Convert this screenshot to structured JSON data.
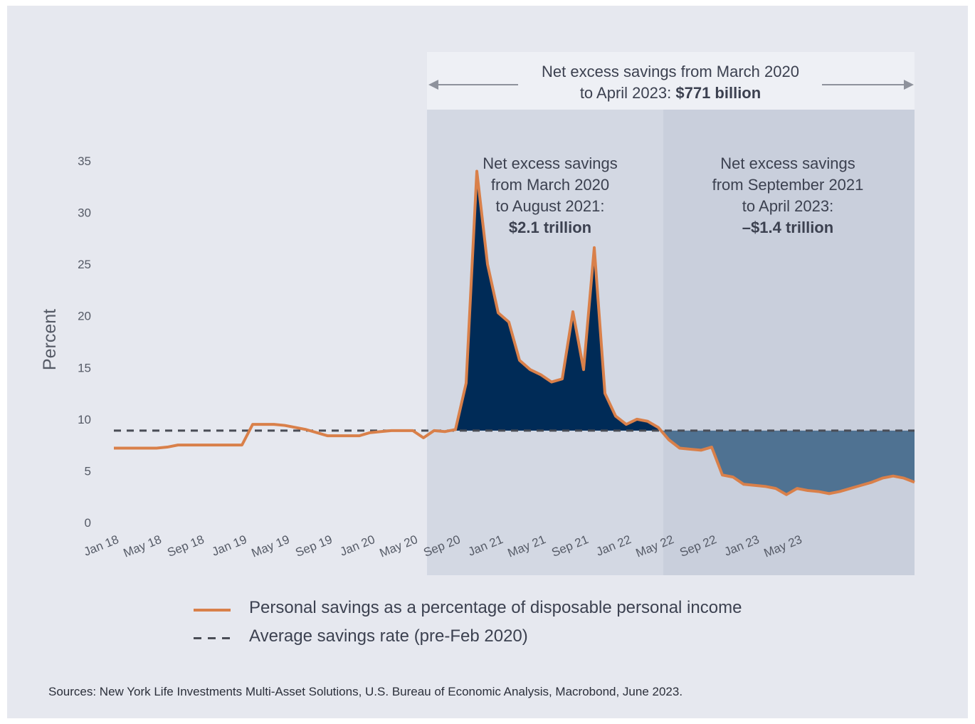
{
  "chart_data": {
    "type": "area",
    "ylabel": "Percent",
    "yticks": [
      "0",
      "5",
      "10",
      "15",
      "20",
      "25",
      "30",
      "35"
    ],
    "ylim": [
      0,
      35
    ],
    "xticks": [
      "Jan 18",
      "May 18",
      "Sep 18",
      "Jan 19",
      "May 19",
      "Sep 19",
      "Jan 20",
      "May 20",
      "Sep 20",
      "Jan 21",
      "May 21",
      "Sep 21",
      "Jan 22",
      "May 22",
      "Sep 22",
      "Jan 23",
      "May 23"
    ],
    "average_rate": 8.9,
    "series": [
      {
        "name": "Personal savings as a percentage of disposable personal income",
        "color": "#d9804a",
        "values": [
          7.2,
          7.2,
          7.2,
          7.2,
          7.2,
          7.3,
          7.5,
          7.5,
          7.5,
          7.5,
          7.5,
          7.5,
          7.5,
          9.5,
          9.5,
          9.5,
          9.4,
          9.2,
          9.0,
          8.7,
          8.4,
          8.4,
          8.4,
          8.4,
          8.7,
          8.8,
          8.9,
          8.9,
          8.9,
          8.2,
          8.9,
          8.8,
          9.0,
          13.5,
          34.0,
          25.0,
          20.3,
          19.4,
          15.7,
          14.8,
          14.3,
          13.6,
          13.9,
          20.4,
          14.8,
          26.6,
          12.5,
          10.3,
          9.5,
          10.0,
          9.8,
          9.2,
          8.0,
          7.2,
          7.1,
          7.0,
          7.3,
          4.6,
          4.4,
          3.7,
          3.6,
          3.5,
          3.3,
          2.7,
          3.3,
          3.1,
          3.0,
          2.8,
          3.0,
          3.3,
          3.6,
          3.9,
          4.3,
          4.5,
          4.3,
          3.9
        ]
      }
    ],
    "legend": [
      {
        "label": "Personal savings as a percentage of disposable personal income",
        "style": "solid",
        "color": "#d9804a"
      },
      {
        "label": "Average savings rate (pre-Feb 2020)",
        "style": "dashed",
        "color": "#4a4d56"
      }
    ],
    "annotations": {
      "total_line1": "Net excess savings from March 2020",
      "total_line2_prefix": "to April 2023: ",
      "total_value": "$771 billion",
      "period1_lines": [
        "Net excess savings",
        "from March 2020",
        "to August 2021:"
      ],
      "period1_value": "$2.1 trillion",
      "period2_lines": [
        "Net excess savings",
        "from September 2021",
        "to April 2023:"
      ],
      "period2_value": "–$1.4 trillion"
    },
    "colors": {
      "positive_fill": "#002b57",
      "negative_fill": "#4f7292",
      "period1_band": "#d3d8e3",
      "period2_band": "#c9cfdc",
      "header_band": "#eef0f5"
    }
  },
  "source": "Sources: New York Life Investments Multi-Asset Solutions, U.S. Bureau of Economic Analysis, Macrobond, June 2023."
}
